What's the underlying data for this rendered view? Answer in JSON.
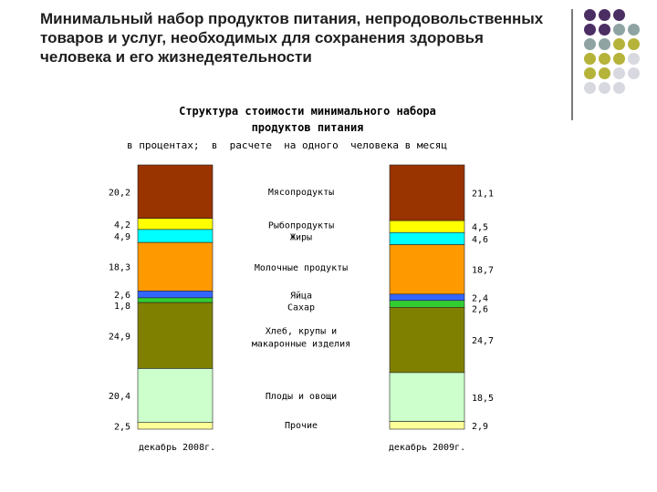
{
  "slide": {
    "title": "Минимальный набор продуктов питания, непродовольственных товаров и услуг, необходимых для сохранения здоровья человека и его жизнедеятельности"
  },
  "decor": {
    "dot_colors": [
      "#4b2e63",
      "#8fa3a3",
      "#b5b33a",
      "#d8d8e0"
    ],
    "dot_grid": [
      [
        0,
        0,
        0,
        -1
      ],
      [
        0,
        0,
        1,
        1
      ],
      [
        1,
        1,
        2,
        2
      ],
      [
        2,
        2,
        2,
        3
      ],
      [
        2,
        2,
        3,
        3
      ],
      [
        3,
        3,
        3,
        -1
      ]
    ]
  },
  "chart_data": {
    "type": "bar",
    "stacked": true,
    "percent": true,
    "title_lines": [
      "Структура стоимости минимального набора",
      "продуктов питания"
    ],
    "subtitle": "в процентах;  в  расчете  на одного  человека в месяц",
    "categories": [
      "декабрь 2008г.",
      "декабрь 2009г."
    ],
    "series": [
      {
        "name": "Мясопродукты",
        "values": [
          20.2,
          21.1
        ],
        "labels": [
          "20,2",
          "21,1"
        ],
        "color": "#993300"
      },
      {
        "name": "Рыбопродукты",
        "values": [
          4.2,
          4.5
        ],
        "labels": [
          "4,2",
          "4,5"
        ],
        "color": "#ffff00"
      },
      {
        "name": "Жиры",
        "values": [
          4.9,
          4.6
        ],
        "labels": [
          "4,9",
          "4,6"
        ],
        "color": "#00ffff"
      },
      {
        "name": "Молочные продукты",
        "values": [
          18.3,
          18.7
        ],
        "labels": [
          "18,3",
          "18,7"
        ],
        "color": "#ff9900"
      },
      {
        "name": "Яйца",
        "values": [
          2.6,
          2.4
        ],
        "labels": [
          "2,6",
          "2,4"
        ],
        "color": "#3366ff"
      },
      {
        "name": "Сахар",
        "values": [
          1.8,
          2.6
        ],
        "labels": [
          "1,8",
          "2,6"
        ],
        "color": "#33cc33"
      },
      {
        "name": "Хлеб, крупы и макаронные изделия",
        "name_lines": [
          "Хлеб, крупы и",
          "макаронные изделия"
        ],
        "values": [
          24.9,
          24.7
        ],
        "labels": [
          "24,9",
          "24,7"
        ],
        "color": "#808000"
      },
      {
        "name": "Плоды и овощи",
        "values": [
          20.4,
          18.5
        ],
        "labels": [
          "20,4",
          "18,5"
        ],
        "color": "#ccffcc"
      },
      {
        "name": "Прочие",
        "values": [
          2.5,
          2.9
        ],
        "labels": [
          "2,5",
          "2,9"
        ],
        "color": "#ffff99"
      }
    ]
  }
}
